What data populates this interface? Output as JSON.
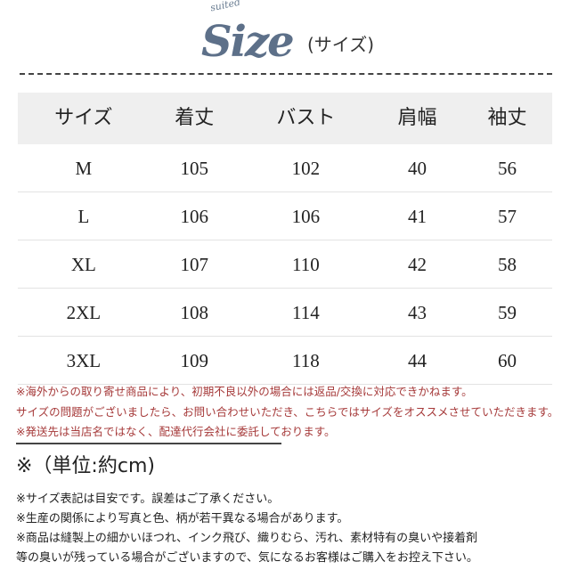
{
  "logo": {
    "small": "suited",
    "big": "Size",
    "paren": "(サイズ)"
  },
  "table": {
    "headers": [
      "サイズ",
      "着丈",
      "バスト",
      "肩幅",
      "袖丈"
    ],
    "rows": [
      [
        "M",
        "105",
        "102",
        "40",
        "56"
      ],
      [
        "L",
        "106",
        "106",
        "41",
        "57"
      ],
      [
        "XL",
        "107",
        "110",
        "42",
        "58"
      ],
      [
        "2XL",
        "108",
        "114",
        "43",
        "59"
      ],
      [
        "3XL",
        "109",
        "118",
        "44",
        "60"
      ]
    ]
  },
  "warnings": [
    "※海外からの取り寄せ商品により、初期不良以外の場合には返品/交換に対応できかねます。",
    "サイズの問題がございましたら、お問い合わせいただき、こちらではサイズをオススメさせていただきます。",
    "※発送先は当店名ではなく、配達代行会社に委託しております。"
  ],
  "unit": "※（単位:約cm)",
  "notes": [
    "※サイズ表記は目安です。誤差はご了承ください。",
    "※生産の関係により写真と色、柄が若干異なる場合があります。",
    "※商品は縫製上の細かいほつれ、インク飛び、織りむら、汚れ、素材特有の臭いや接着剤",
    "等の臭いが残っている場合がございますので、気になるお客様はご購入をお控え下さい。"
  ],
  "colors": {
    "logo": "#5d7089",
    "warning": "#a63a3a",
    "header_bg": "#efefef"
  }
}
